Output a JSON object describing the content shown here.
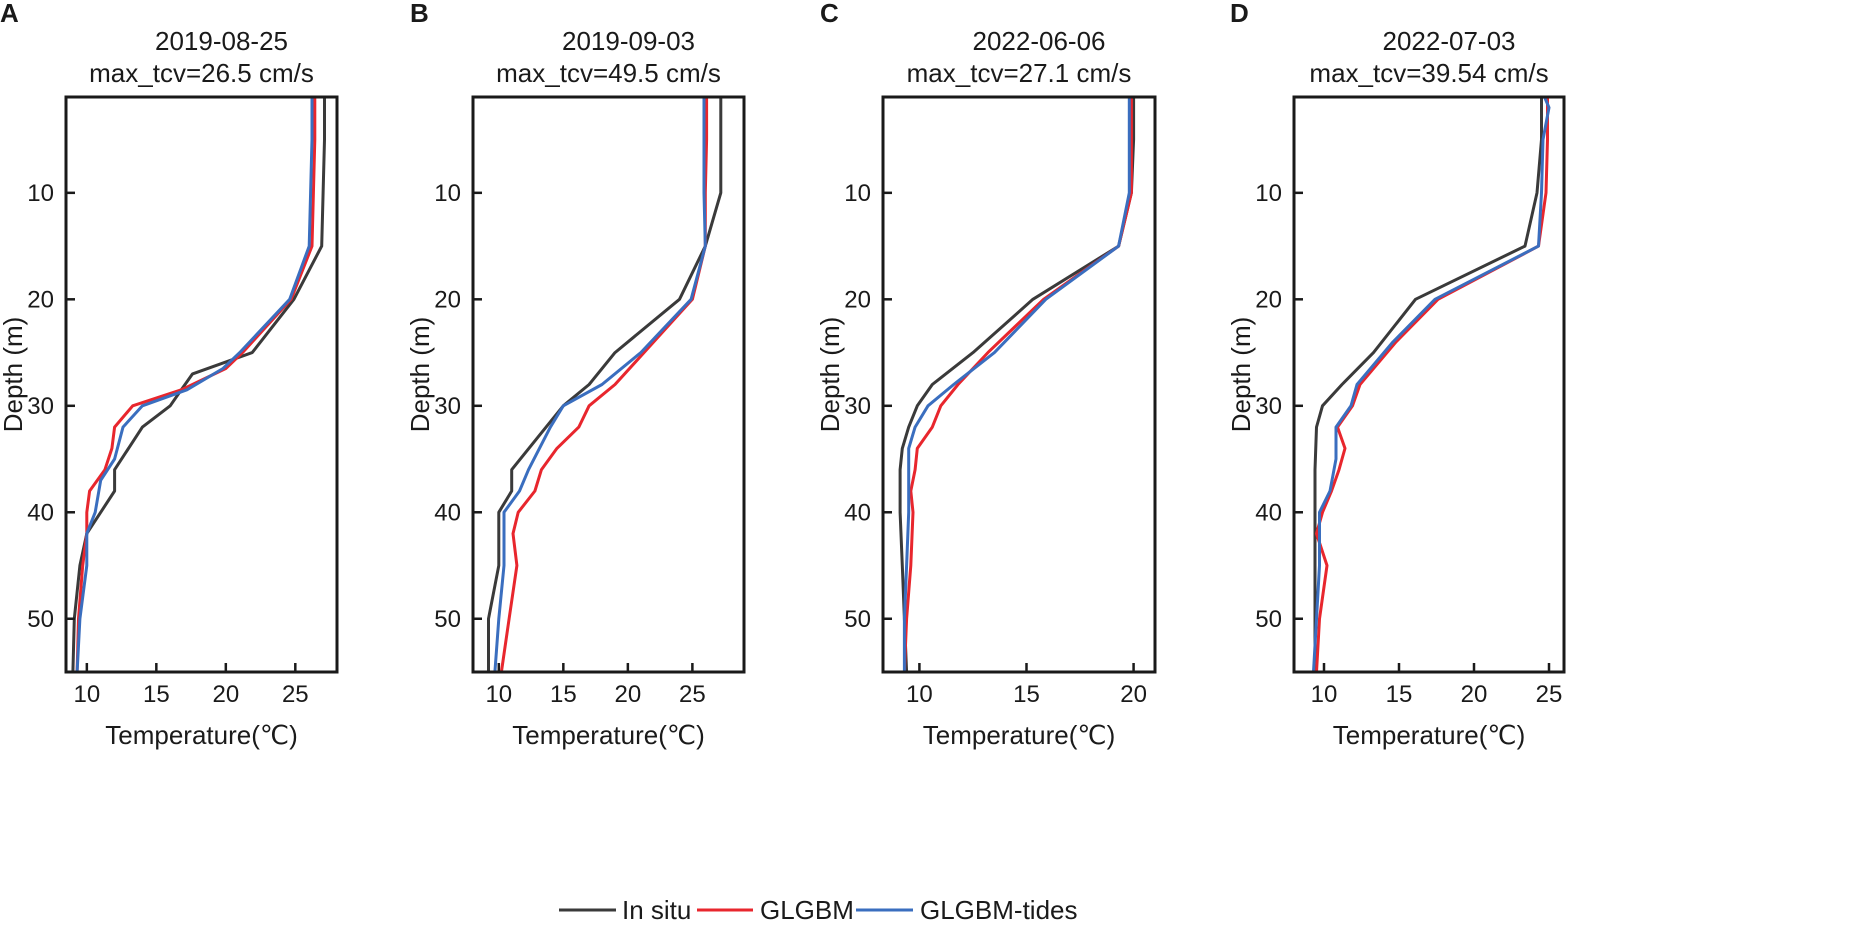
{
  "colors": {
    "in_situ": "#3a3a3a",
    "glgbm": "#e8262d",
    "glgbm_tides": "#3a6ebf",
    "axes": "#1a1a1a"
  },
  "legend": [
    "In situ",
    "GLGBM",
    "GLGBM-tides"
  ],
  "chart_data": [
    {
      "type": "line",
      "panel": "A",
      "title": "2019-08-25",
      "subtitle": "max_tcv=26.5 cm/s",
      "xlabel": "Temperature(℃)",
      "ylabel": "Depth (m)",
      "xlim": [
        8.5,
        28
      ],
      "ylim": [
        55,
        1
      ],
      "xticks": [
        10,
        15,
        20,
        25
      ],
      "yticks": [
        10,
        20,
        30,
        40,
        50
      ],
      "series": [
        {
          "name": "In situ",
          "points": [
            [
              27.1,
              1
            ],
            [
              27.1,
              5
            ],
            [
              27,
              10
            ],
            [
              26.9,
              15
            ],
            [
              24.9,
              20
            ],
            [
              21.9,
              25
            ],
            [
              17.6,
              27
            ],
            [
              16.8,
              28.5
            ],
            [
              16,
              30
            ],
            [
              14,
              32
            ],
            [
              12,
              36
            ],
            [
              12,
              38
            ],
            [
              10,
              42
            ],
            [
              9.5,
              45
            ],
            [
              9.1,
              50
            ],
            [
              9,
              55
            ]
          ]
        },
        {
          "name": "GLGBM",
          "points": [
            [
              26.4,
              1
            ],
            [
              26.4,
              5
            ],
            [
              26.3,
              10
            ],
            [
              26.2,
              15
            ],
            [
              24.7,
              20
            ],
            [
              21.2,
              25
            ],
            [
              20,
              26.5
            ],
            [
              16.8,
              28.5
            ],
            [
              13.3,
              30
            ],
            [
              12,
              32
            ],
            [
              11.8,
              34
            ],
            [
              11.3,
              36
            ],
            [
              10.2,
              38
            ],
            [
              10,
              40
            ],
            [
              10,
              42
            ],
            [
              9.7,
              45
            ],
            [
              9.4,
              50
            ],
            [
              9.3,
              55
            ]
          ]
        },
        {
          "name": "GLGBM-tides",
          "points": [
            [
              26.2,
              1
            ],
            [
              26.2,
              5
            ],
            [
              26.1,
              10
            ],
            [
              26,
              15
            ],
            [
              24.6,
              20
            ],
            [
              21,
              25
            ],
            [
              19.8,
              26.5
            ],
            [
              17.2,
              28.5
            ],
            [
              14,
              30
            ],
            [
              12.6,
              32
            ],
            [
              12,
              35
            ],
            [
              11,
              37
            ],
            [
              10.6,
              40
            ],
            [
              10,
              42
            ],
            [
              10,
              45
            ],
            [
              9.5,
              50
            ],
            [
              9.3,
              55
            ]
          ]
        }
      ]
    },
    {
      "type": "line",
      "panel": "B",
      "title": "2019-09-03",
      "subtitle": "max_tcv=49.5 cm/s",
      "xlabel": "Temperature(℃)",
      "ylabel": "Depth (m)",
      "xlim": [
        8,
        29
      ],
      "ylim": [
        55,
        1
      ],
      "xticks": [
        10,
        15,
        20,
        25
      ],
      "yticks": [
        10,
        20,
        30,
        40,
        50
      ],
      "series": [
        {
          "name": "In situ",
          "points": [
            [
              27.2,
              1
            ],
            [
              27.2,
              5
            ],
            [
              27.2,
              10
            ],
            [
              26,
              15
            ],
            [
              24,
              20
            ],
            [
              19,
              25
            ],
            [
              17,
              28
            ],
            [
              15,
              30
            ],
            [
              13,
              33
            ],
            [
              11,
              36
            ],
            [
              11,
              38
            ],
            [
              10,
              40
            ],
            [
              10,
              42
            ],
            [
              10,
              45
            ],
            [
              9.2,
              50
            ],
            [
              9.2,
              55
            ]
          ]
        },
        {
          "name": "GLGBM",
          "points": [
            [
              26.1,
              1
            ],
            [
              26.1,
              5
            ],
            [
              26,
              10
            ],
            [
              26,
              15
            ],
            [
              25,
              20
            ],
            [
              22,
              24
            ],
            [
              19,
              28
            ],
            [
              17,
              30
            ],
            [
              16.2,
              32
            ],
            [
              14.5,
              34
            ],
            [
              13.3,
              36
            ],
            [
              12.8,
              38
            ],
            [
              11.5,
              40
            ],
            [
              11.1,
              42
            ],
            [
              11.4,
              45
            ],
            [
              10.8,
              50
            ],
            [
              10.2,
              55
            ]
          ]
        },
        {
          "name": "GLGBM-tides",
          "points": [
            [
              25.9,
              1
            ],
            [
              25.9,
              5
            ],
            [
              25.9,
              10
            ],
            [
              26,
              15
            ],
            [
              24.9,
              20
            ],
            [
              21,
              25
            ],
            [
              18,
              28
            ],
            [
              15,
              30
            ],
            [
              14,
              32
            ],
            [
              12.3,
              36
            ],
            [
              11.6,
              38
            ],
            [
              10.4,
              40
            ],
            [
              10.4,
              42
            ],
            [
              10.4,
              45
            ],
            [
              10,
              50
            ],
            [
              9.7,
              55
            ]
          ]
        }
      ]
    },
    {
      "type": "line",
      "panel": "C",
      "title": "2022-06-06",
      "subtitle": "max_tcv=27.1 cm/s",
      "xlabel": "Temperature(℃)",
      "ylabel": "Depth (m)",
      "xlim": [
        8.3,
        21
      ],
      "ylim": [
        55,
        1
      ],
      "xticks": [
        10,
        15,
        20
      ],
      "yticks": [
        10,
        20,
        30,
        40,
        50
      ],
      "series": [
        {
          "name": "In situ",
          "points": [
            [
              20,
              1
            ],
            [
              20,
              5
            ],
            [
              19.9,
              10
            ],
            [
              19.3,
              15
            ],
            [
              15.3,
              20
            ],
            [
              12.5,
              25
            ],
            [
              10.6,
              28
            ],
            [
              9.9,
              30
            ],
            [
              9.5,
              32
            ],
            [
              9.2,
              34
            ],
            [
              9.1,
              36
            ],
            [
              9.1,
              40
            ],
            [
              9.2,
              45
            ],
            [
              9.3,
              50
            ],
            [
              9.4,
              55
            ]
          ]
        },
        {
          "name": "GLGBM",
          "points": [
            [
              19.9,
              1
            ],
            [
              19.9,
              5
            ],
            [
              19.9,
              10
            ],
            [
              19.3,
              15
            ],
            [
              15.8,
              20
            ],
            [
              13.2,
              25
            ],
            [
              11.8,
              28
            ],
            [
              11,
              30
            ],
            [
              10.6,
              32
            ],
            [
              9.9,
              34
            ],
            [
              9.8,
              36
            ],
            [
              9.6,
              38
            ],
            [
              9.7,
              40
            ],
            [
              9.6,
              45
            ],
            [
              9.4,
              50
            ],
            [
              9.3,
              55
            ]
          ]
        },
        {
          "name": "GLGBM-tides",
          "points": [
            [
              19.8,
              1
            ],
            [
              19.8,
              5
            ],
            [
              19.8,
              10
            ],
            [
              19.3,
              15
            ],
            [
              15.9,
              20
            ],
            [
              13.5,
              25
            ],
            [
              11.6,
              28
            ],
            [
              10.4,
              30
            ],
            [
              9.8,
              32
            ],
            [
              9.5,
              34
            ],
            [
              9.5,
              36
            ],
            [
              9.5,
              40
            ],
            [
              9.4,
              45
            ],
            [
              9.3,
              50
            ],
            [
              9.3,
              55
            ]
          ]
        }
      ]
    },
    {
      "type": "line",
      "panel": "D",
      "title": "2022-07-03",
      "subtitle": "max_tcv=39.54 cm/s",
      "xlabel": "Temperature(℃)",
      "ylabel": "Depth (m)",
      "xlim": [
        8,
        26
      ],
      "ylim": [
        55,
        1
      ],
      "xticks": [
        10,
        15,
        20,
        25
      ],
      "yticks": [
        10,
        20,
        30,
        40,
        50
      ],
      "series": [
        {
          "name": "In situ",
          "points": [
            [
              24.5,
              1
            ],
            [
              24.5,
              5
            ],
            [
              24.2,
              10
            ],
            [
              23.4,
              15
            ],
            [
              16.1,
              20
            ],
            [
              13.3,
              25
            ],
            [
              11.2,
              28
            ],
            [
              9.9,
              30
            ],
            [
              9.5,
              32
            ],
            [
              9.4,
              36
            ],
            [
              9.4,
              40
            ],
            [
              9.4,
              45
            ],
            [
              9.4,
              50
            ],
            [
              9.4,
              55
            ]
          ]
        },
        {
          "name": "GLGBM",
          "points": [
            [
              24.9,
              1
            ],
            [
              24.9,
              5
            ],
            [
              24.8,
              10
            ],
            [
              24.3,
              15
            ],
            [
              17.6,
              20
            ],
            [
              14.8,
              24
            ],
            [
              12.4,
              28
            ],
            [
              11.9,
              30
            ],
            [
              10.9,
              32
            ],
            [
              11.4,
              34
            ],
            [
              11,
              36
            ],
            [
              10.5,
              38
            ],
            [
              9.9,
              40
            ],
            [
              9.5,
              42
            ],
            [
              10.2,
              45
            ],
            [
              9.7,
              50
            ],
            [
              9.5,
              55
            ]
          ]
        },
        {
          "name": "GLGBM-tides",
          "points": [
            [
              24.7,
              1
            ],
            [
              25,
              2
            ],
            [
              24.6,
              5
            ],
            [
              24.5,
              10
            ],
            [
              24.3,
              15
            ],
            [
              17.4,
              20
            ],
            [
              14.6,
              24
            ],
            [
              12.2,
              28
            ],
            [
              11.8,
              30
            ],
            [
              10.8,
              32
            ],
            [
              10.8,
              35
            ],
            [
              10.4,
              38
            ],
            [
              9.7,
              40
            ],
            [
              9.7,
              45
            ],
            [
              9.5,
              50
            ],
            [
              9.3,
              55
            ]
          ]
        }
      ]
    }
  ]
}
